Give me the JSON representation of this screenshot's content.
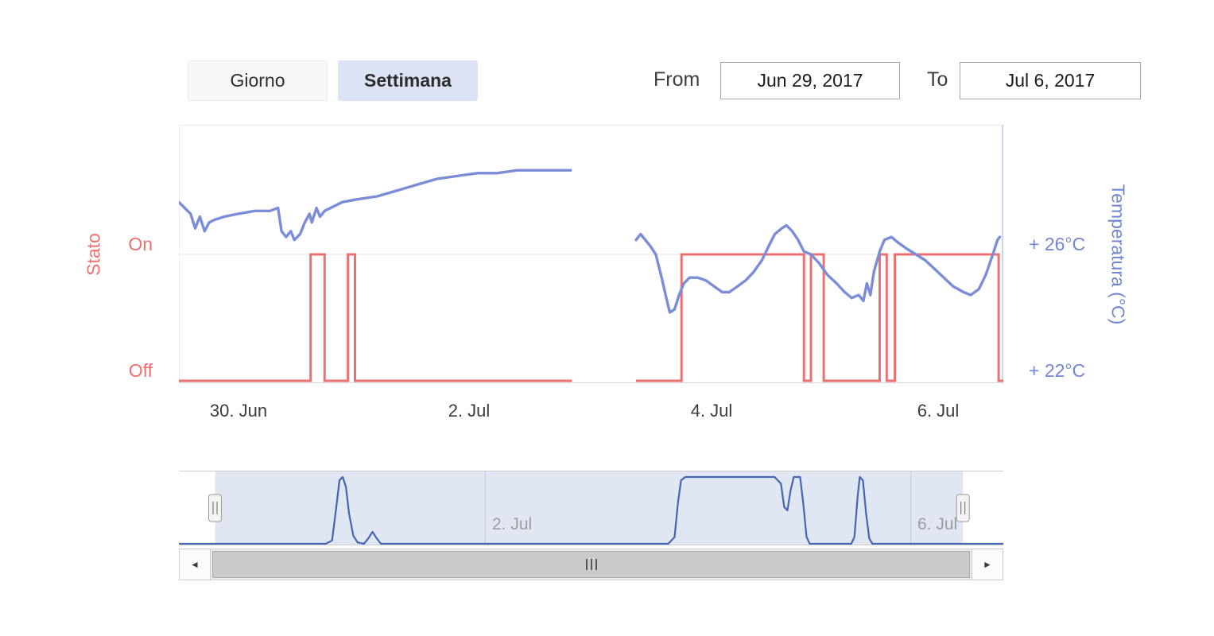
{
  "toolbar": {
    "range_buttons": [
      {
        "label": "Giorno",
        "selected": false
      },
      {
        "label": "Settimana",
        "selected": true
      }
    ],
    "from_label": "From",
    "from_value": "Jun 29, 2017",
    "to_label": "To",
    "to_value": "Jul 6, 2017"
  },
  "colors": {
    "selected_button_bg": "#dbe3f4",
    "stato_accent": "#ed7071",
    "temperatura_accent": "#7287d3"
  },
  "icons": {
    "left_arrow": "◄",
    "right_arrow": "►",
    "scrollbar_grip": "scrollbar-grip-icon",
    "navigator_handle": "navigator-handle-icon"
  },
  "chart_data": {
    "type": "line",
    "title": "",
    "x_unit": "days since 2017-06-29 00:00",
    "x_range_main": [
      0.49,
      7.56
    ],
    "x_ticks": [
      {
        "x": 1,
        "label": "30. Jun"
      },
      {
        "x": 3,
        "label": "2. Jul"
      },
      {
        "x": 5,
        "label": "4. Jul"
      },
      {
        "x": 7,
        "label": "6. Jul"
      }
    ],
    "grid": "horizontal line at On / +26°C level only",
    "legend_position": "none",
    "series": [
      {
        "name": "Temperatura (°C)",
        "color": "#7b8dd8",
        "axis": "right",
        "ylim": [
          21.5,
          30.5
        ],
        "y_ticks": [
          {
            "y": 26,
            "label": "+ 26°C"
          },
          {
            "y": 22,
            "label": "+ 22°C"
          }
        ],
        "segments": [
          [
            [
              0.49,
              27.8
            ],
            [
              0.54,
              27.6
            ],
            [
              0.59,
              27.4
            ],
            [
              0.63,
              26.9
            ],
            [
              0.67,
              27.3
            ],
            [
              0.71,
              26.8
            ],
            [
              0.75,
              27.1
            ],
            [
              0.8,
              27.2
            ],
            [
              0.88,
              27.3
            ],
            [
              1.0,
              27.4
            ],
            [
              1.14,
              27.5
            ],
            [
              1.27,
              27.5
            ],
            [
              1.34,
              27.6
            ],
            [
              1.37,
              26.8
            ],
            [
              1.41,
              26.6
            ],
            [
              1.45,
              26.8
            ],
            [
              1.48,
              26.5
            ],
            [
              1.53,
              26.7
            ],
            [
              1.57,
              27.1
            ],
            [
              1.61,
              27.4
            ],
            [
              1.63,
              27.1
            ],
            [
              1.67,
              27.6
            ],
            [
              1.7,
              27.3
            ],
            [
              1.74,
              27.5
            ],
            [
              1.79,
              27.6
            ],
            [
              1.89,
              27.8
            ],
            [
              2.02,
              27.9
            ],
            [
              2.19,
              28.0
            ],
            [
              2.36,
              28.2
            ],
            [
              2.53,
              28.4
            ],
            [
              2.7,
              28.6
            ],
            [
              2.87,
              28.7
            ],
            [
              3.05,
              28.8
            ],
            [
              3.22,
              28.8
            ],
            [
              3.39,
              28.9
            ],
            [
              3.56,
              28.9
            ],
            [
              3.73,
              28.9
            ],
            [
              3.85,
              28.9
            ]
          ],
          [
            [
              4.41,
              26.5
            ],
            [
              4.45,
              26.7
            ],
            [
              4.49,
              26.5
            ],
            [
              4.53,
              26.3
            ],
            [
              4.58,
              26.0
            ],
            [
              4.63,
              25.2
            ],
            [
              4.67,
              24.5
            ],
            [
              4.7,
              24.0
            ],
            [
              4.74,
              24.1
            ],
            [
              4.78,
              24.6
            ],
            [
              4.82,
              25.0
            ],
            [
              4.87,
              25.2
            ],
            [
              4.94,
              25.2
            ],
            [
              5.01,
              25.1
            ],
            [
              5.08,
              24.9
            ],
            [
              5.15,
              24.7
            ],
            [
              5.21,
              24.7
            ],
            [
              5.28,
              24.9
            ],
            [
              5.35,
              25.1
            ],
            [
              5.42,
              25.4
            ],
            [
              5.49,
              25.8
            ],
            [
              5.55,
              26.3
            ],
            [
              5.6,
              26.7
            ],
            [
              5.66,
              26.9
            ],
            [
              5.7,
              27.0
            ],
            [
              5.75,
              26.8
            ],
            [
              5.8,
              26.5
            ],
            [
              5.85,
              26.1
            ],
            [
              5.91,
              26.0
            ],
            [
              5.98,
              25.7
            ],
            [
              6.05,
              25.3
            ],
            [
              6.13,
              25.0
            ],
            [
              6.2,
              24.7
            ],
            [
              6.26,
              24.5
            ],
            [
              6.32,
              24.6
            ],
            [
              6.36,
              24.4
            ],
            [
              6.39,
              25.0
            ],
            [
              6.42,
              24.6
            ],
            [
              6.45,
              25.4
            ],
            [
              6.5,
              26.1
            ],
            [
              6.54,
              26.5
            ],
            [
              6.6,
              26.6
            ],
            [
              6.66,
              26.4
            ],
            [
              6.73,
              26.2
            ],
            [
              6.81,
              26.0
            ],
            [
              6.89,
              25.8
            ],
            [
              6.97,
              25.5
            ],
            [
              7.05,
              25.2
            ],
            [
              7.13,
              24.9
            ],
            [
              7.22,
              24.7
            ],
            [
              7.28,
              24.6
            ],
            [
              7.35,
              24.8
            ],
            [
              7.41,
              25.3
            ],
            [
              7.47,
              26.0
            ],
            [
              7.51,
              26.5
            ],
            [
              7.53,
              26.6
            ]
          ]
        ]
      },
      {
        "name": "Stato",
        "color": "#ed7071",
        "axis": "left",
        "y_ticks": [
          {
            "y": 1,
            "label": "On"
          },
          {
            "y": 0,
            "label": "Off"
          }
        ],
        "visible_ranges": [
          [
            0.49,
            3.86
          ],
          [
            4.41,
            7.56
          ]
        ],
        "on_intervals": [
          [
            1.62,
            1.74
          ],
          [
            1.94,
            2.0
          ],
          [
            4.8,
            5.85
          ],
          [
            5.91,
            6.02
          ],
          [
            6.5,
            6.56
          ],
          [
            6.63,
            7.52
          ]
        ]
      }
    ],
    "navigator": {
      "name": "Stato (navigator preview)",
      "color": "#4565b2",
      "mask_fill": "rgba(102,133,194,0.20)",
      "x_range": [
        0.12,
        7.87
      ],
      "selected_range": [
        0.46,
        7.49
      ],
      "ticks": [
        {
          "x": 3,
          "label": "2. Jul"
        },
        {
          "x": 7,
          "label": "6. Jul"
        }
      ],
      "points": [
        [
          0.12,
          0
        ],
        [
          1.5,
          0
        ],
        [
          1.56,
          0.05
        ],
        [
          1.6,
          0.55
        ],
        [
          1.63,
          0.95
        ],
        [
          1.66,
          1.0
        ],
        [
          1.69,
          0.85
        ],
        [
          1.72,
          0.45
        ],
        [
          1.76,
          0.12
        ],
        [
          1.8,
          0.02
        ],
        [
          1.86,
          0
        ],
        [
          1.9,
          0.08
        ],
        [
          1.94,
          0.18
        ],
        [
          1.98,
          0.08
        ],
        [
          2.02,
          0
        ],
        [
          4.72,
          0
        ],
        [
          4.78,
          0.1
        ],
        [
          4.81,
          0.6
        ],
        [
          4.84,
          0.95
        ],
        [
          4.88,
          1.0
        ],
        [
          5.72,
          1.0
        ],
        [
          5.78,
          0.9
        ],
        [
          5.81,
          0.55
        ],
        [
          5.84,
          0.5
        ],
        [
          5.87,
          0.8
        ],
        [
          5.9,
          1.0
        ],
        [
          5.96,
          1.0
        ],
        [
          5.99,
          0.6
        ],
        [
          6.02,
          0.1
        ],
        [
          6.05,
          0
        ],
        [
          6.44,
          0
        ],
        [
          6.47,
          0.1
        ],
        [
          6.5,
          0.7
        ],
        [
          6.52,
          1.0
        ],
        [
          6.55,
          0.95
        ],
        [
          6.58,
          0.45
        ],
        [
          6.61,
          0.08
        ],
        [
          6.64,
          0
        ],
        [
          7.87,
          0
        ]
      ]
    }
  }
}
